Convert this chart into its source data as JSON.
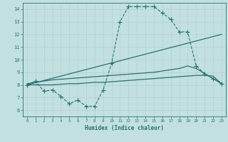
{
  "xlabel": "Humidex (Indice chaleur)",
  "bg_color": "#c2e0e0",
  "line_color": "#2a7070",
  "xlim": [
    -0.5,
    23.5
  ],
  "ylim": [
    5.5,
    14.5
  ],
  "xticks": [
    0,
    1,
    2,
    3,
    4,
    5,
    6,
    7,
    8,
    9,
    10,
    11,
    12,
    13,
    14,
    15,
    16,
    17,
    18,
    19,
    20,
    21,
    22,
    23
  ],
  "yticks": [
    6,
    7,
    8,
    9,
    10,
    11,
    12,
    13,
    14
  ],
  "series": [
    {
      "x": [
        0,
        1,
        2,
        3,
        4,
        5,
        6,
        7,
        8,
        9,
        10,
        11,
        12,
        13,
        14,
        15,
        16,
        17,
        18,
        19,
        20,
        21,
        22,
        23
      ],
      "y": [
        8.0,
        8.3,
        7.5,
        7.6,
        7.1,
        6.5,
        6.8,
        6.3,
        6.3,
        7.6,
        9.7,
        13.0,
        14.2,
        14.2,
        14.2,
        14.2,
        13.7,
        13.2,
        12.2,
        12.2,
        9.5,
        8.9,
        8.5,
        8.1
      ],
      "marker": "+",
      "ms": 4,
      "lw": 0.8,
      "dashed": true
    },
    {
      "x": [
        0,
        23
      ],
      "y": [
        8.0,
        12.0
      ],
      "marker": null,
      "ms": 0,
      "lw": 0.9,
      "dashed": false
    },
    {
      "x": [
        0,
        1,
        2,
        3,
        4,
        5,
        6,
        7,
        8,
        9,
        10,
        11,
        12,
        13,
        14,
        15,
        16,
        17,
        18,
        19,
        20,
        21,
        22,
        23
      ],
      "y": [
        8.1,
        8.2,
        8.3,
        8.4,
        8.45,
        8.5,
        8.55,
        8.6,
        8.65,
        8.7,
        8.75,
        8.8,
        8.85,
        8.9,
        8.95,
        9.0,
        9.1,
        9.2,
        9.3,
        9.5,
        9.3,
        8.9,
        8.5,
        8.1
      ],
      "marker": null,
      "ms": 0,
      "lw": 0.9,
      "dashed": false
    },
    {
      "x": [
        0,
        1,
        2,
        3,
        4,
        5,
        6,
        7,
        8,
        9,
        10,
        11,
        12,
        13,
        14,
        15,
        16,
        17,
        18,
        19,
        20,
        21,
        22,
        23
      ],
      "y": [
        8.0,
        8.0,
        8.0,
        8.0,
        8.05,
        8.1,
        8.1,
        8.15,
        8.2,
        8.2,
        8.25,
        8.3,
        8.35,
        8.4,
        8.45,
        8.5,
        8.55,
        8.6,
        8.65,
        8.7,
        8.75,
        8.75,
        8.7,
        8.1
      ],
      "marker": null,
      "ms": 0,
      "lw": 0.9,
      "dashed": false
    }
  ]
}
